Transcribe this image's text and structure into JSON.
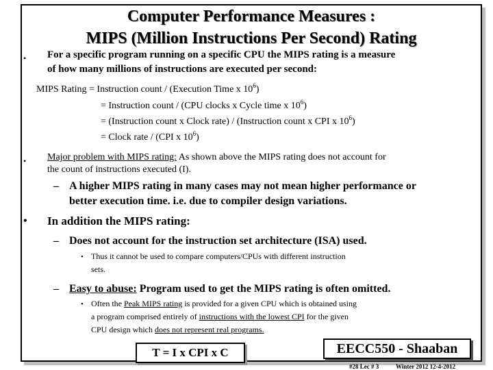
{
  "slide": {
    "title_line1": "Computer Performance Measures :",
    "title_line2": "MIPS (Million Instructions Per Second) Rating",
    "bullet_char": "•",
    "dash_char": "–",
    "intro_line1": "For a specific program running on a specific CPU the MIPS rating is a measure",
    "intro_line2": "of how many millions of instructions are executed per second:",
    "eq1_pre": "MIPS  Rating =  Instruction count  /  (Execution Time x 10",
    "eq1_sup": "6",
    "eq1_post": ")",
    "eq2_pre": "=  Instruction count  /  (CPU clocks x Cycle time x 10",
    "eq2_sup": "6",
    "eq2_post": ")",
    "eq3_pre": "=  (Instruction count  x  Clock rate)  /  (Instruction count  x  CPI x 10",
    "eq3_sup": "6",
    "eq3_post": ")",
    "eq4_pre": "=   Clock rate  /  (CPI x 10",
    "eq4_sup": "6",
    "eq4_post": ")",
    "problem_underlined": "Major problem with MIPS rating:",
    "problem_rest": " As shown above the MIPS rating does not account for",
    "problem_line2": "the count of instructions executed (I).",
    "higher_line1": "A higher MIPS rating in many cases may not mean higher performance or",
    "higher_line2": "better execution time.  i.e. due to compiler design variations.",
    "addition": "In addition the MIPS rating:",
    "isa_point": "Does not account for the instruction set architecture (ISA) used.",
    "isa_sub_line1": "Thus it cannot be used to compare computers/CPUs with different instruction",
    "isa_sub_line2": "sets.",
    "abuse_underlined": "Easy to abuse:",
    "abuse_rest": "  Program used to get the MIPS rating is often omitted.",
    "peak_pre": "Often the ",
    "peak_underlined": "Peak MIPS rating",
    "peak_rest": " is provided for  a given CPU which is obtained using",
    "peak_line2_pre": "a program  comprised entirely of  ",
    "peak_line2_underlined": "instructions with the lowest CPI",
    "peak_line2_rest": " for the given",
    "peak_line3_pre": "CPU design which ",
    "peak_line3_underlined": "does not represent real programs.",
    "formula": "T =  I  x  CPI   x C",
    "course_box": "EECC550 - Shaaban",
    "footer_slide": "#28   Lec # 3",
    "footer_term": "Winter 2012   12-4-2012"
  }
}
